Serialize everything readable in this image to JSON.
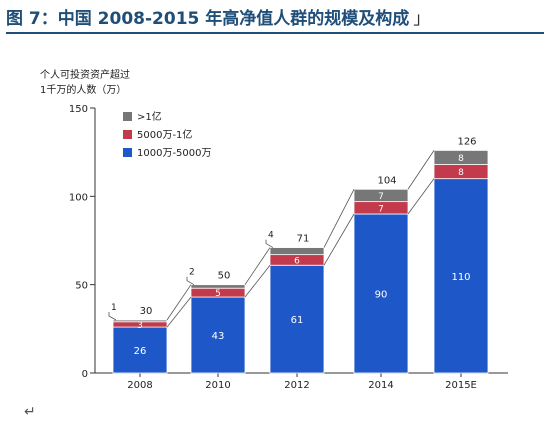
{
  "figure": {
    "title": "图 7：中国 2008-2015 年高净值人群的规模及构成",
    "end_mark": "」",
    "return_mark": "↵",
    "colors": {
      "series_low": "#1e58c8",
      "series_mid": "#c23a4b",
      "series_high": "#777777",
      "title": "#1f4e79"
    }
  },
  "chart_data": {
    "type": "bar",
    "stacked": true,
    "ylabel": "个人可投资资产超过\n1千万的人数（万）",
    "ylim": [
      0,
      150
    ],
    "yticks": [
      0,
      50,
      100,
      150
    ],
    "grid": false,
    "legend_position": "top-left",
    "categories": [
      "2008",
      "2010",
      "2012",
      "2014",
      "2015E"
    ],
    "series": [
      {
        "name": "1000万-5000万",
        "values": [
          26,
          43,
          61,
          90,
          110
        ]
      },
      {
        "name": "5000万-1亿",
        "values": [
          3,
          5,
          6,
          7,
          8
        ]
      },
      {
        "name": ">1亿",
        "values": [
          1,
          2,
          4,
          7,
          8
        ]
      }
    ],
    "totals": [
      30,
      50,
      71,
      104,
      126
    ]
  }
}
